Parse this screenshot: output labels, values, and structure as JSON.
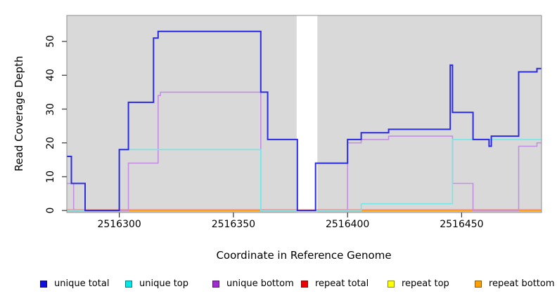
{
  "figure": {
    "x_axis_title": "Coordinate in Reference Genome",
    "y_axis_title": "Read Coverage Depth"
  },
  "legend": {
    "items": [
      {
        "label": "unique total",
        "color": "#0f0fe0"
      },
      {
        "label": "unique top",
        "color": "#00e8e8"
      },
      {
        "label": "unique bottom",
        "color": "#9f2cd1"
      },
      {
        "label": "repeat total",
        "color": "#ee0000"
      },
      {
        "label": "repeat top",
        "color": "#ffff00"
      },
      {
        "label": "repeat bottom",
        "color": "#ffa000"
      }
    ]
  },
  "chart_data": {
    "type": "line",
    "subtype": "step-after",
    "title": "",
    "xlabel": "Coordinate in Reference Genome",
    "ylabel": "Read Coverage Depth",
    "xlim": [
      2516277,
      2516485
    ],
    "ylim": [
      -0.6,
      57.7
    ],
    "x_ticks": [
      2516300,
      2516350,
      2516400,
      2516450
    ],
    "y_ticks": [
      0,
      10,
      20,
      30,
      40,
      50
    ],
    "grid": false,
    "legend_position": "bottom",
    "panel_bg": "#d9d9d9",
    "panel_border": "#8f8f8f",
    "background_gap_x": [
      2516377.7,
      2516386.8
    ],
    "x_end": 2516485,
    "series": [
      {
        "name": "repeat total",
        "color": "#ee0000",
        "steps": [
          [
            2516277,
            0
          ]
        ]
      },
      {
        "name": "repeat top",
        "color": "#f2ee2a",
        "steps": [
          [
            2516277,
            0
          ]
        ]
      },
      {
        "name": "repeat bottom",
        "color": "#ff9d00",
        "steps": [
          [
            2516277,
            0
          ]
        ]
      },
      {
        "name": "unique bottom",
        "color": "#c48fe3",
        "steps": [
          [
            2516277,
            8
          ],
          [
            2516280,
            0
          ],
          [
            2516304,
            14
          ],
          [
            2516317,
            34
          ],
          [
            2516318,
            35
          ],
          [
            2516362,
            0
          ],
          [
            2516400,
            20
          ],
          [
            2516406,
            21
          ],
          [
            2516418,
            22
          ],
          [
            2516446,
            8
          ],
          [
            2516455,
            0
          ],
          [
            2516475,
            19
          ],
          [
            2516483,
            20
          ]
        ]
      },
      {
        "name": "unique top",
        "color": "#74e8e8",
        "steps": [
          [
            2516277,
            0
          ],
          [
            2516300,
            18
          ],
          [
            2516362,
            0
          ],
          [
            2516406,
            2
          ],
          [
            2516446,
            21
          ]
        ]
      },
      {
        "name": "unique total",
        "color": "#2b2be0",
        "steps": [
          [
            2516277,
            16
          ],
          [
            2516279,
            8
          ],
          [
            2516285,
            0
          ],
          [
            2516300,
            18
          ],
          [
            2516304,
            32
          ],
          [
            2516315,
            51
          ],
          [
            2516317,
            53
          ],
          [
            2516362,
            35
          ],
          [
            2516365,
            21
          ],
          [
            2516378,
            0
          ],
          [
            2516386,
            14
          ],
          [
            2516400,
            21
          ],
          [
            2516406,
            23
          ],
          [
            2516418,
            24
          ],
          [
            2516445,
            43
          ],
          [
            2516446,
            29
          ],
          [
            2516455,
            21
          ],
          [
            2516462,
            19
          ],
          [
            2516463,
            22
          ],
          [
            2516475,
            41
          ],
          [
            2516483,
            42
          ]
        ]
      }
    ]
  }
}
